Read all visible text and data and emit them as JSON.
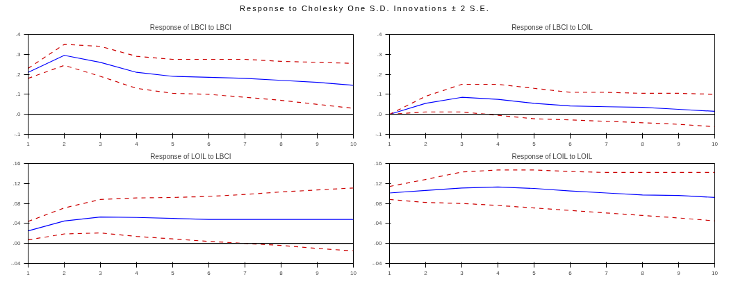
{
  "chart_data": [
    {
      "type": "line",
      "title": "Response of LBCI to LBCI",
      "annotations": [
        "Response to Cholesky One S.D. Innovations ± 2 S.E."
      ],
      "x": [
        1,
        2,
        3,
        4,
        5,
        6,
        7,
        8,
        9,
        10
      ],
      "xlim": [
        1,
        10
      ],
      "xticks": [
        1,
        2,
        3,
        4,
        5,
        6,
        7,
        8,
        9,
        10
      ],
      "ylim": [
        -0.1,
        0.4
      ],
      "yticks": [
        {
          "value": -0.1,
          "label": "-.1"
        },
        {
          "value": 0,
          "label": ".0"
        },
        {
          "value": 0.1,
          "label": ".1"
        },
        {
          "value": 0.2,
          "label": ".2"
        },
        {
          "value": 0.3,
          "label": ".3"
        },
        {
          "value": 0.4,
          "label": ".4"
        }
      ],
      "grid": false,
      "ref_lines": [
        {
          "axis": "y",
          "value": 0,
          "color": "#000000"
        }
      ],
      "series": [
        {
          "color": "#0000ff",
          "line_style": "solid",
          "values": [
            0.21,
            0.295,
            0.26,
            0.21,
            0.19,
            0.185,
            0.18,
            0.17,
            0.16,
            0.145
          ]
        },
        {
          "color": "#cc0000",
          "line_style": "dashed",
          "values": [
            0.23,
            0.35,
            0.34,
            0.29,
            0.275,
            0.275,
            0.275,
            0.265,
            0.26,
            0.255
          ]
        },
        {
          "color": "#cc0000",
          "line_style": "dashed",
          "values": [
            0.18,
            0.245,
            0.19,
            0.13,
            0.105,
            0.1,
            0.085,
            0.07,
            0.05,
            0.03
          ]
        }
      ]
    },
    {
      "type": "line",
      "title": "Response of LBCI to LOIL",
      "x": [
        1,
        2,
        3,
        4,
        5,
        6,
        7,
        8,
        9,
        10
      ],
      "xlim": [
        1,
        10
      ],
      "xticks": [
        1,
        2,
        3,
        4,
        5,
        6,
        7,
        8,
        9,
        10
      ],
      "ylim": [
        -0.1,
        0.4
      ],
      "yticks": [
        {
          "value": -0.1,
          "label": "-.1"
        },
        {
          "value": 0,
          "label": ".0"
        },
        {
          "value": 0.1,
          "label": ".1"
        },
        {
          "value": 0.2,
          "label": ".2"
        },
        {
          "value": 0.3,
          "label": ".3"
        },
        {
          "value": 0.4,
          "label": ".4"
        }
      ],
      "grid": false,
      "ref_lines": [
        {
          "axis": "y",
          "value": 0,
          "color": "#000000"
        }
      ],
      "series": [
        {
          "color": "#0000ff",
          "line_style": "solid",
          "values": [
            0,
            0.055,
            0.085,
            0.075,
            0.055,
            0.042,
            0.038,
            0.035,
            0.025,
            0.015
          ]
        },
        {
          "color": "#cc0000",
          "line_style": "dashed",
          "values": [
            0,
            0.09,
            0.15,
            0.15,
            0.13,
            0.11,
            0.11,
            0.105,
            0.105,
            0.1
          ]
        },
        {
          "color": "#cc0000",
          "line_style": "dashed",
          "values": [
            0,
            0.012,
            0.012,
            -0.005,
            -0.022,
            -0.028,
            -0.035,
            -0.042,
            -0.05,
            -0.062
          ]
        }
      ]
    },
    {
      "type": "line",
      "title": "Response of LOIL to LBCI",
      "x": [
        1,
        2,
        3,
        4,
        5,
        6,
        7,
        8,
        9,
        10
      ],
      "xlim": [
        1,
        10
      ],
      "xticks": [
        1,
        2,
        3,
        4,
        5,
        6,
        7,
        8,
        9,
        10
      ],
      "ylim": [
        -0.04,
        0.16
      ],
      "yticks": [
        {
          "value": -0.04,
          "label": "-.04"
        },
        {
          "value": 0,
          "label": ".00"
        },
        {
          "value": 0.04,
          "label": ".04"
        },
        {
          "value": 0.08,
          "label": ".08"
        },
        {
          "value": 0.12,
          "label": ".12"
        },
        {
          "value": 0.16,
          "label": ".16"
        }
      ],
      "grid": false,
      "ref_lines": [
        {
          "axis": "y",
          "value": 0,
          "color": "#000000"
        }
      ],
      "series": [
        {
          "color": "#0000ff",
          "line_style": "solid",
          "values": [
            0.025,
            0.045,
            0.053,
            0.052,
            0.05,
            0.048,
            0.048,
            0.048,
            0.048,
            0.048
          ]
        },
        {
          "color": "#cc0000",
          "line_style": "dashed",
          "values": [
            0.044,
            0.071,
            0.088,
            0.091,
            0.092,
            0.094,
            0.098,
            0.103,
            0.107,
            0.111
          ]
        },
        {
          "color": "#cc0000",
          "line_style": "dashed",
          "values": [
            0.007,
            0.019,
            0.021,
            0.014,
            0.009,
            0.004,
            0.0,
            -0.004,
            -0.01,
            -0.015
          ]
        }
      ]
    },
    {
      "type": "line",
      "title": "Response of LOIL to LOIL",
      "x": [
        1,
        2,
        3,
        4,
        5,
        6,
        7,
        8,
        9,
        10
      ],
      "xlim": [
        1,
        10
      ],
      "xticks": [
        1,
        2,
        3,
        4,
        5,
        6,
        7,
        8,
        9,
        10
      ],
      "ylim": [
        -0.04,
        0.16
      ],
      "yticks": [
        {
          "value": -0.04,
          "label": "-.04"
        },
        {
          "value": 0,
          "label": ".00"
        },
        {
          "value": 0.04,
          "label": ".04"
        },
        {
          "value": 0.08,
          "label": ".08"
        },
        {
          "value": 0.12,
          "label": ".12"
        },
        {
          "value": 0.16,
          "label": ".16"
        }
      ],
      "grid": false,
      "ref_lines": [
        {
          "axis": "y",
          "value": 0,
          "color": "#000000"
        }
      ],
      "series": [
        {
          "color": "#0000ff",
          "line_style": "solid",
          "values": [
            0.101,
            0.106,
            0.111,
            0.113,
            0.11,
            0.105,
            0.101,
            0.097,
            0.096,
            0.092
          ]
        },
        {
          "color": "#cc0000",
          "line_style": "dashed",
          "values": [
            0.114,
            0.128,
            0.143,
            0.147,
            0.147,
            0.144,
            0.142,
            0.142,
            0.142,
            0.142
          ]
        },
        {
          "color": "#cc0000",
          "line_style": "dashed",
          "values": [
            0.088,
            0.082,
            0.08,
            0.076,
            0.071,
            0.066,
            0.061,
            0.056,
            0.051,
            0.045
          ]
        }
      ]
    }
  ]
}
